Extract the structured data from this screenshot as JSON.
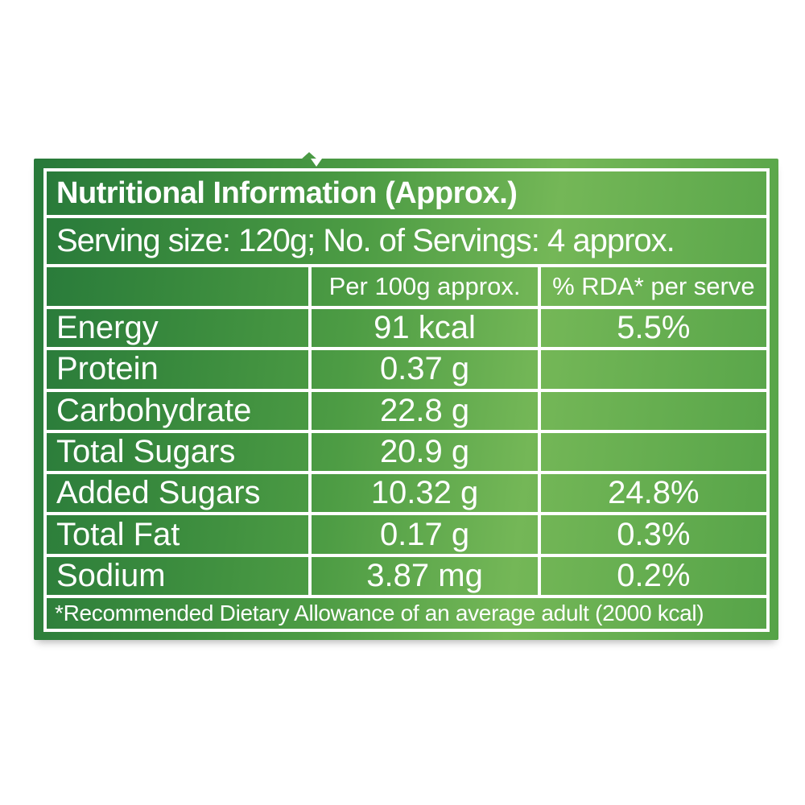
{
  "label": {
    "title": "Nutritional Information (Approx.)",
    "serving_info": "Serving size: 120g; No. of Servings: 4 approx.",
    "columns": [
      "",
      "Per 100g approx.",
      "% RDA* per serve"
    ],
    "rows": [
      {
        "label": "Energy",
        "per100g": "91 kcal",
        "rda": "5.5%"
      },
      {
        "label": "Protein",
        "per100g": "0.37 g",
        "rda": ""
      },
      {
        "label": "Carbohydrate",
        "per100g": "22.8 g",
        "rda": ""
      },
      {
        "label": "Total Sugars",
        "per100g": "20.9 g",
        "rda": ""
      },
      {
        "label": "Added Sugars",
        "per100g": "10.32 g",
        "rda": "24.8%"
      },
      {
        "label": "Total Fat",
        "per100g": "0.17 g",
        "rda": "0.3%"
      },
      {
        "label": "Sodium",
        "per100g": "3.87 mg",
        "rda": "0.2%"
      }
    ],
    "footnote": "*Recommended Dietary Allowance of an average adult (2000 kcal)",
    "colors": {
      "green_dark": "#27793a",
      "green_mid": "#4d9c44",
      "green_light": "#74b757",
      "green_right": "#55a348",
      "grid_line": "#ffffff",
      "text": "#ffffff"
    }
  }
}
